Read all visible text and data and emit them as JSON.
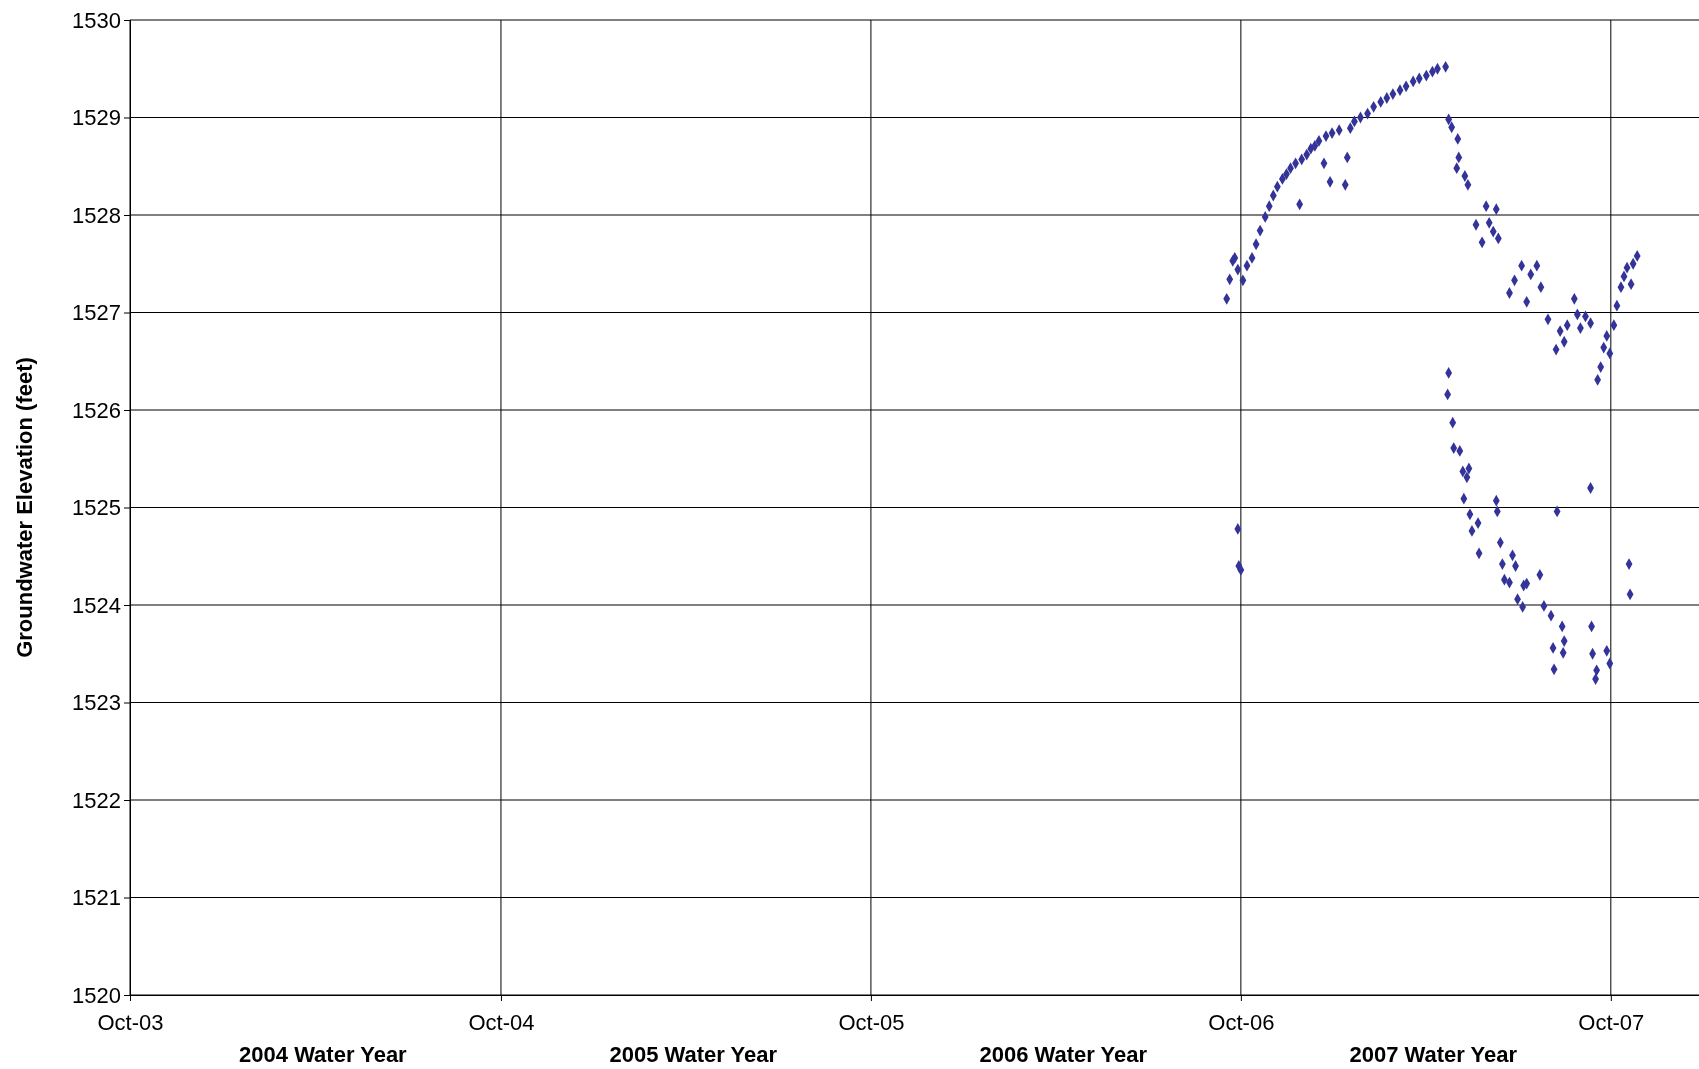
{
  "chart_data": {
    "type": "scatter",
    "ylabel": "Groundwater Elevation (feet)",
    "marker": "diamond",
    "grid": true,
    "xlim": [
      "2003-10-01",
      "2007-12-27"
    ],
    "xticks": [
      {
        "value": "2003-10-01",
        "label": "Oct-03"
      },
      {
        "value": "2004-10-01",
        "label": "Oct-04"
      },
      {
        "value": "2005-10-01",
        "label": "Oct-05"
      },
      {
        "value": "2006-10-01",
        "label": "Oct-06"
      },
      {
        "value": "2007-10-01",
        "label": "Oct-07"
      }
    ],
    "ylim": [
      1520,
      1530
    ],
    "yticks": [
      1520,
      1521,
      1522,
      1523,
      1524,
      1525,
      1526,
      1527,
      1528,
      1529,
      1530
    ],
    "annotations": [
      "2004 Water Year",
      "2005 Water Year",
      "2006 Water Year",
      "2007 Water Year"
    ],
    "series": [
      {
        "color": "#333399",
        "x": [
          "2006-09-17",
          "2006-09-20",
          "2006-09-23",
          "2006-09-25",
          "2006-09-28",
          "2006-10-03",
          "2006-10-07",
          "2006-10-12",
          "2006-10-16",
          "2006-10-20",
          "2006-10-25",
          "2006-10-29",
          "2006-11-02",
          "2006-11-06",
          "2006-11-11",
          "2006-11-15",
          "2006-11-19",
          "2006-11-24",
          "2006-11-28",
          "2006-11-30",
          "2006-12-05",
          "2006-12-09",
          "2006-12-13",
          "2006-12-17",
          "2006-12-22",
          "2006-12-24",
          "2006-12-28",
          "2006-12-30",
          "2007-01-06",
          "2007-01-12",
          "2007-01-14",
          "2007-01-17",
          "2007-01-21",
          "2007-01-27",
          "2007-02-03",
          "2007-02-09",
          "2007-02-16",
          "2007-02-22",
          "2007-02-28",
          "2007-03-07",
          "2007-03-13",
          "2007-03-20",
          "2007-03-26",
          "2007-04-02",
          "2007-04-08",
          "2007-04-13",
          "2007-04-21",
          "2007-04-24",
          "2007-04-27",
          "2007-05-03",
          "2007-05-04",
          "2007-05-02",
          "2007-05-10",
          "2007-05-13",
          "2007-05-21",
          "2007-05-27",
          "2007-05-31",
          "2007-06-03",
          "2007-06-07",
          "2007-06-10",
          "2007-06-12",
          "2007-06-23",
          "2007-06-28",
          "2007-07-05",
          "2007-07-10",
          "2007-07-14",
          "2007-07-20",
          "2007-07-24",
          "2007-07-31",
          "2007-08-08",
          "2007-08-12",
          "2007-08-16",
          "2007-08-19",
          "2007-08-26",
          "2007-08-29",
          "2007-09-01",
          "2007-09-06",
          "2007-09-11",
          "2007-09-18",
          "2007-09-21",
          "2007-09-24",
          "2007-09-27",
          "2007-09-30",
          "2007-10-04",
          "2007-10-07",
          "2007-10-11",
          "2007-10-14",
          "2007-10-17",
          "2007-10-21",
          "2007-10-23",
          "2007-10-27",
          "2006-09-28",
          "2006-09-29",
          "2006-10-01",
          "2007-04-24",
          "2007-04-23",
          "2007-04-28",
          "2007-04-29",
          "2007-05-05",
          "2007-05-08",
          "2007-05-12",
          "2007-05-14",
          "2007-05-09",
          "2007-05-15",
          "2007-05-17",
          "2007-05-24",
          "2007-05-23",
          "2007-06-10",
          "2007-06-11",
          "2007-06-14",
          "2007-06-16",
          "2007-06-18",
          "2007-06-23",
          "2007-06-26",
          "2007-06-29",
          "2007-07-01",
          "2007-07-07",
          "2007-07-10",
          "2007-07-06",
          "2007-07-23",
          "2007-07-27",
          "2007-08-03",
          "2007-08-05",
          "2007-08-06",
          "2007-08-09",
          "2007-08-14",
          "2007-08-16",
          "2007-08-15",
          "2007-09-11",
          "2007-09-12",
          "2007-09-13",
          "2007-09-17",
          "2007-09-16",
          "2007-09-27",
          "2007-09-30",
          "2007-10-19",
          "2007-10-20"
        ],
        "values": [
          1527.14,
          1527.34,
          1527.53,
          1527.56,
          1527.44,
          1527.33,
          1527.48,
          1527.56,
          1527.7,
          1527.84,
          1527.98,
          1528.09,
          1528.2,
          1528.29,
          1528.37,
          1528.42,
          1528.48,
          1528.53,
          1528.11,
          1528.57,
          1528.62,
          1528.68,
          1528.71,
          1528.76,
          1528.53,
          1528.81,
          1528.34,
          1528.84,
          1528.87,
          1528.31,
          1528.59,
          1528.89,
          1528.96,
          1529.0,
          1529.04,
          1529.11,
          1529.16,
          1529.2,
          1529.24,
          1529.28,
          1529.32,
          1529.37,
          1529.4,
          1529.43,
          1529.47,
          1529.5,
          1529.52,
          1528.98,
          1528.9,
          1528.78,
          1528.59,
          1528.48,
          1528.4,
          1528.31,
          1527.9,
          1527.72,
          1528.09,
          1527.92,
          1527.83,
          1528.06,
          1527.76,
          1527.2,
          1527.33,
          1527.48,
          1527.11,
          1527.39,
          1527.48,
          1527.26,
          1526.93,
          1526.62,
          1526.81,
          1526.7,
          1526.87,
          1527.14,
          1526.98,
          1526.84,
          1526.96,
          1526.89,
          1526.31,
          1526.44,
          1526.64,
          1526.76,
          1526.58,
          1526.87,
          1527.07,
          1527.26,
          1527.37,
          1527.46,
          1527.29,
          1527.5,
          1527.58,
          1524.78,
          1524.4,
          1524.36,
          1526.38,
          1526.16,
          1525.87,
          1525.61,
          1525.58,
          1525.37,
          1525.31,
          1525.4,
          1525.09,
          1524.93,
          1524.76,
          1524.53,
          1524.84,
          1525.07,
          1524.96,
          1524.64,
          1524.42,
          1524.26,
          1524.23,
          1524.51,
          1524.4,
          1524.06,
          1524.2,
          1524.22,
          1523.98,
          1524.31,
          1523.99,
          1523.89,
          1523.56,
          1523.34,
          1524.96,
          1523.78,
          1523.63,
          1523.51,
          1525.2,
          1523.78,
          1523.5,
          1523.33,
          1523.24,
          1523.53,
          1523.4,
          1524.42,
          1524.11
        ]
      }
    ]
  }
}
